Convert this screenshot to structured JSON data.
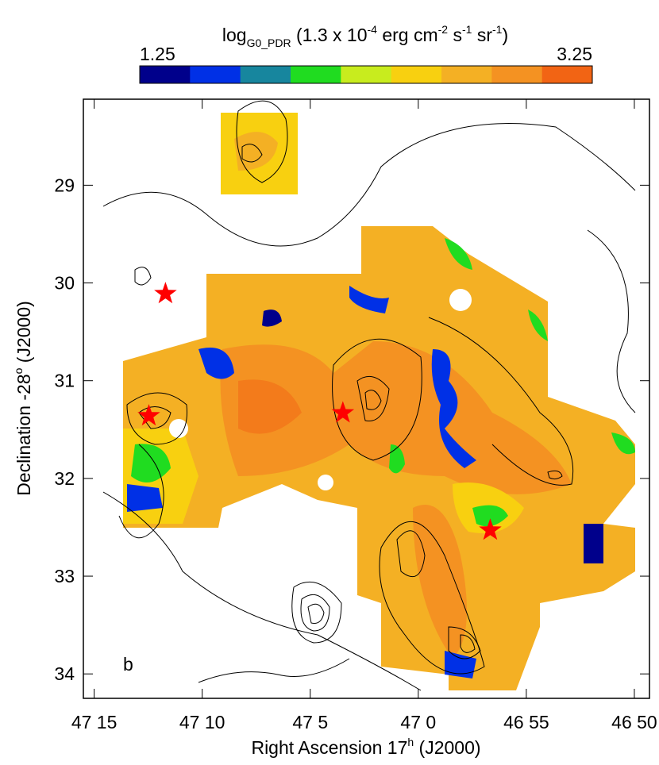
{
  "chart_data": {
    "type": "map",
    "title": [
      "log",
      "G0_PDR",
      " (1.3 x 10",
      "-4",
      " erg cm",
      "-2",
      " s",
      "-1",
      " sr",
      "-1",
      ")"
    ],
    "colorbar": {
      "range": [
        1.25,
        3.25
      ],
      "colors": [
        "#00008b",
        "#0030e6",
        "#17869e",
        "#20dc20",
        "#c8ec1e",
        "#f8d010",
        "#f4b024",
        "#f49222",
        "#f26414"
      ]
    },
    "panel_label": "b",
    "xlabel": [
      "Right Ascension   17",
      "h",
      " (J2000)"
    ],
    "ylabel": [
      "Declination  -28",
      "o",
      " (J2000)"
    ],
    "xlim": [
      2835.5,
      2809.3
    ],
    "xticks": [
      {
        "value": 2835,
        "label": "47 15"
      },
      {
        "value": 2830,
        "label": "47 10"
      },
      {
        "value": 2825,
        "label": "47 5"
      },
      {
        "value": 2820,
        "label": "47 0"
      },
      {
        "value": 2815,
        "label": "46 55"
      },
      {
        "value": 2810,
        "label": "46 50"
      }
    ],
    "ylim": [
      34.25,
      28.12
    ],
    "yticks": [
      29,
      30,
      31,
      32,
      33,
      34
    ],
    "stars": {
      "color": "#ff0000",
      "x": [
        2831.7,
        2832.47,
        2823.49,
        2816.67
      ],
      "y": [
        30.11,
        31.36,
        31.33,
        32.53
      ]
    }
  }
}
